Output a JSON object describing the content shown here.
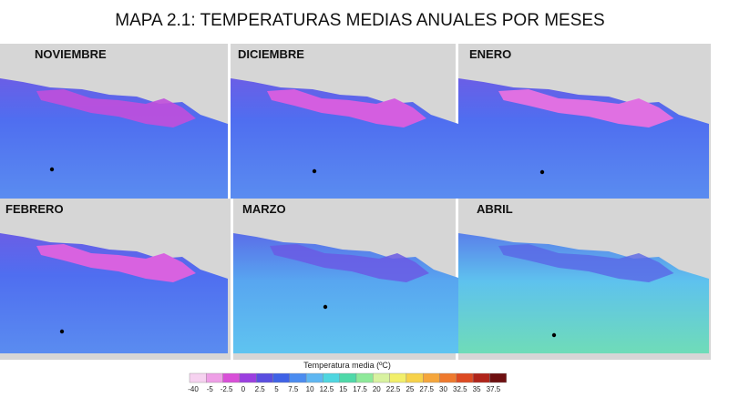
{
  "title": "MAPA 2.1: TEMPERATURAS MEDIAS ANUALES POR MESES",
  "panels": [
    {
      "label": "NOVIEMBRE"
    },
    {
      "label": "DICIEMBRE"
    },
    {
      "label": "ENERO"
    },
    {
      "label": "FEBRERO"
    },
    {
      "label": "MARZO"
    },
    {
      "label": "ABRIL"
    }
  ],
  "legend": {
    "title": "Temperatura media (ºC)",
    "labels": [
      "-40",
      "-5",
      "-2.5",
      "0",
      "2.5",
      "5",
      "7.5",
      "10",
      "12.5",
      "15",
      "17.5",
      "20",
      "22.5",
      "25",
      "27.5",
      "30",
      "32.5",
      "35",
      "37.5"
    ],
    "colors": [
      "#f6d2f0",
      "#ee9fe6",
      "#d94fd8",
      "#9b3fe0",
      "#5a4ee0",
      "#3f62e6",
      "#4b8cf0",
      "#5fb7f2",
      "#4fd6e0",
      "#4fd9a9",
      "#8ee99a",
      "#d8f2a0",
      "#f2ef6a",
      "#f7d24a",
      "#f5a63c",
      "#ef7a2e",
      "#dd4a22",
      "#b0241a",
      "#6e0f10"
    ]
  }
}
